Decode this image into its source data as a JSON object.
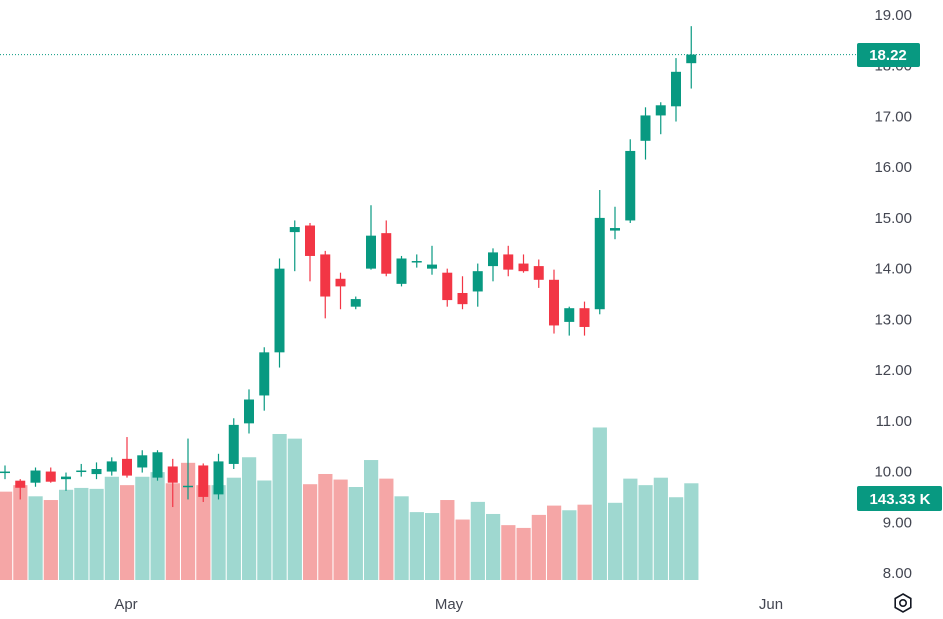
{
  "chart_data": {
    "type": "candlestick",
    "price_axis": {
      "ticks": [
        "19.00",
        "18.00",
        "17.00",
        "16.00",
        "15.00",
        "14.00",
        "13.00",
        "12.00",
        "11.00",
        "10.00",
        "9.00",
        "8.00"
      ],
      "range": [
        7.8,
        19.1
      ]
    },
    "time_axis": {
      "labels": [
        "Apr",
        "May",
        "Jun"
      ]
    },
    "last_price": {
      "value": 18.22,
      "label": "18.22"
    },
    "last_volume": {
      "label": "143.33 K"
    },
    "colors": {
      "up": "#089981",
      "down": "#f23645",
      "vol_up": "#9fd8d0",
      "vol_down": "#f5a6a6",
      "tag_bg": "#089981",
      "price_line": "#089981"
    },
    "candles": [
      {
        "o": 10.0,
        "h": 10.12,
        "l": 9.85,
        "c": 10.0
      },
      {
        "o": 9.82,
        "h": 9.85,
        "l": 9.45,
        "c": 9.68
      },
      {
        "o": 9.78,
        "h": 10.08,
        "l": 9.7,
        "c": 10.02
      },
      {
        "o": 10.0,
        "h": 10.08,
        "l": 9.78,
        "c": 9.8
      },
      {
        "o": 9.85,
        "h": 9.98,
        "l": 9.62,
        "c": 9.9
      },
      {
        "o": 10.02,
        "h": 10.15,
        "l": 9.9,
        "c": 10.02
      },
      {
        "o": 9.95,
        "h": 10.18,
        "l": 9.85,
        "c": 10.05
      },
      {
        "o": 10.0,
        "h": 10.28,
        "l": 9.92,
        "c": 10.2
      },
      {
        "o": 10.25,
        "h": 10.68,
        "l": 9.88,
        "c": 9.92
      },
      {
        "o": 10.08,
        "h": 10.42,
        "l": 9.98,
        "c": 10.32
      },
      {
        "o": 9.88,
        "h": 10.42,
        "l": 9.82,
        "c": 10.38
      },
      {
        "o": 10.1,
        "h": 10.25,
        "l": 9.3,
        "c": 9.78
      },
      {
        "o": 9.72,
        "h": 10.65,
        "l": 9.45,
        "c": 9.72
      },
      {
        "o": 10.12,
        "h": 10.16,
        "l": 9.4,
        "c": 9.5
      },
      {
        "o": 9.55,
        "h": 10.35,
        "l": 9.45,
        "c": 10.2
      },
      {
        "o": 10.15,
        "h": 11.05,
        "l": 10.05,
        "c": 10.92
      },
      {
        "o": 10.95,
        "h": 11.62,
        "l": 10.75,
        "c": 11.42
      },
      {
        "o": 11.5,
        "h": 12.45,
        "l": 11.2,
        "c": 12.35
      },
      {
        "o": 12.35,
        "h": 14.2,
        "l": 12.05,
        "c": 14.0
      },
      {
        "o": 14.72,
        "h": 14.95,
        "l": 13.95,
        "c": 14.82
      },
      {
        "o": 14.85,
        "h": 14.9,
        "l": 13.75,
        "c": 14.25
      },
      {
        "o": 14.28,
        "h": 14.35,
        "l": 13.02,
        "c": 13.45
      },
      {
        "o": 13.8,
        "h": 13.92,
        "l": 13.2,
        "c": 13.65
      },
      {
        "o": 13.25,
        "h": 13.45,
        "l": 13.2,
        "c": 13.4
      },
      {
        "o": 14.0,
        "h": 15.25,
        "l": 13.98,
        "c": 14.65
      },
      {
        "o": 14.7,
        "h": 14.95,
        "l": 13.85,
        "c": 13.9
      },
      {
        "o": 13.7,
        "h": 14.25,
        "l": 13.65,
        "c": 14.2
      },
      {
        "o": 14.15,
        "h": 14.28,
        "l": 14.02,
        "c": 14.15
      },
      {
        "o": 14.0,
        "h": 14.45,
        "l": 13.88,
        "c": 14.08
      },
      {
        "o": 13.92,
        "h": 14.0,
        "l": 13.25,
        "c": 13.38
      },
      {
        "o": 13.52,
        "h": 13.85,
        "l": 13.2,
        "c": 13.3
      },
      {
        "o": 13.55,
        "h": 14.1,
        "l": 13.25,
        "c": 13.95
      },
      {
        "o": 14.05,
        "h": 14.4,
        "l": 13.75,
        "c": 14.32
      },
      {
        "o": 14.28,
        "h": 14.45,
        "l": 13.85,
        "c": 13.98
      },
      {
        "o": 14.1,
        "h": 14.28,
        "l": 13.92,
        "c": 13.95
      },
      {
        "o": 14.05,
        "h": 14.18,
        "l": 13.62,
        "c": 13.78
      },
      {
        "o": 13.78,
        "h": 13.98,
        "l": 12.72,
        "c": 12.88
      },
      {
        "o": 12.95,
        "h": 13.25,
        "l": 12.68,
        "c": 13.22
      },
      {
        "o": 13.22,
        "h": 13.35,
        "l": 12.68,
        "c": 12.85
      },
      {
        "o": 13.2,
        "h": 15.55,
        "l": 13.1,
        "c": 15.0
      },
      {
        "o": 14.75,
        "h": 15.22,
        "l": 14.58,
        "c": 14.8
      },
      {
        "o": 14.95,
        "h": 16.55,
        "l": 14.9,
        "c": 16.32
      },
      {
        "o": 16.52,
        "h": 17.18,
        "l": 16.15,
        "c": 17.02
      },
      {
        "o": 17.02,
        "h": 17.28,
        "l": 16.65,
        "c": 17.22
      },
      {
        "o": 17.2,
        "h": 18.15,
        "l": 16.9,
        "c": 17.88
      },
      {
        "o": 18.05,
        "h": 18.78,
        "l": 17.55,
        "c": 18.22
      }
    ],
    "volumes": [
      {
        "v": 95,
        "up": false
      },
      {
        "v": 102,
        "up": false
      },
      {
        "v": 90,
        "up": true
      },
      {
        "v": 86,
        "up": false
      },
      {
        "v": 97,
        "up": true
      },
      {
        "v": 99,
        "up": true
      },
      {
        "v": 98,
        "up": true
      },
      {
        "v": 111,
        "up": true
      },
      {
        "v": 102,
        "up": false
      },
      {
        "v": 111,
        "up": true
      },
      {
        "v": 116,
        "up": true
      },
      {
        "v": 104,
        "up": false
      },
      {
        "v": 126,
        "up": false
      },
      {
        "v": 102,
        "up": false
      },
      {
        "v": 102,
        "up": true
      },
      {
        "v": 110,
        "up": true
      },
      {
        "v": 132,
        "up": true
      },
      {
        "v": 107,
        "up": true
      },
      {
        "v": 157,
        "up": true
      },
      {
        "v": 152,
        "up": true
      },
      {
        "v": 103,
        "up": false
      },
      {
        "v": 114,
        "up": false
      },
      {
        "v": 108,
        "up": false
      },
      {
        "v": 100,
        "up": true
      },
      {
        "v": 129,
        "up": true
      },
      {
        "v": 109,
        "up": false
      },
      {
        "v": 90,
        "up": true
      },
      {
        "v": 73,
        "up": true
      },
      {
        "v": 72,
        "up": true
      },
      {
        "v": 86,
        "up": false
      },
      {
        "v": 65,
        "up": false
      },
      {
        "v": 84,
        "up": true
      },
      {
        "v": 71,
        "up": true
      },
      {
        "v": 59,
        "up": false
      },
      {
        "v": 56,
        "up": false
      },
      {
        "v": 70,
        "up": false
      },
      {
        "v": 80,
        "up": false
      },
      {
        "v": 75,
        "up": true
      },
      {
        "v": 81,
        "up": false
      },
      {
        "v": 164,
        "up": true
      },
      {
        "v": 83,
        "up": true
      },
      {
        "v": 109,
        "up": true
      },
      {
        "v": 102,
        "up": true
      },
      {
        "v": 110,
        "up": true
      },
      {
        "v": 89,
        "up": true
      },
      {
        "v": 104,
        "up": true
      }
    ]
  },
  "settings_button": {
    "icon": "settings-hexagon-icon"
  }
}
